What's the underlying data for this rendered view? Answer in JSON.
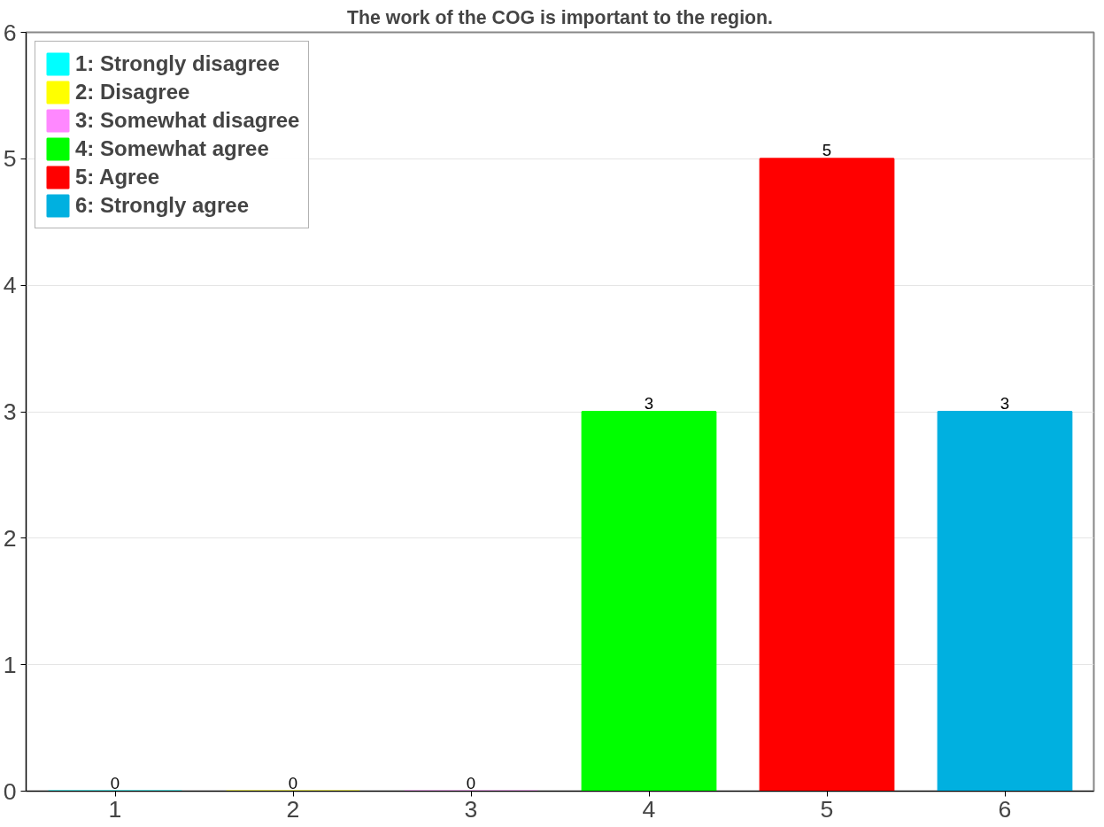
{
  "chart_data": {
    "type": "bar",
    "title": "The work of the COG is important to the region.",
    "categories": [
      "1",
      "2",
      "3",
      "4",
      "5",
      "6"
    ],
    "series": [
      {
        "name": "1: Strongly disagree",
        "color": "#00ffff",
        "values": [
          0,
          null,
          null,
          null,
          null,
          null
        ]
      },
      {
        "name": "2: Disagree",
        "color": "#ffff00",
        "values": [
          null,
          0,
          null,
          null,
          null,
          null
        ]
      },
      {
        "name": "3: Somewhat disagree",
        "color": "#ff88ff",
        "values": [
          null,
          null,
          0,
          null,
          null,
          null
        ]
      },
      {
        "name": "4: Somewhat agree",
        "color": "#00ff00",
        "values": [
          null,
          null,
          null,
          3,
          null,
          null
        ]
      },
      {
        "name": "5: Agree",
        "color": "#ff0000",
        "values": [
          null,
          null,
          null,
          null,
          5,
          null
        ]
      },
      {
        "name": "6: Strongly agree",
        "color": "#00b0e0",
        "values": [
          null,
          null,
          null,
          null,
          null,
          3
        ]
      }
    ],
    "ylim": [
      0,
      6
    ],
    "yticks": [
      0,
      1,
      2,
      3,
      4,
      5,
      6
    ],
    "grid": "y",
    "legend": "top left",
    "data_labels": true
  }
}
